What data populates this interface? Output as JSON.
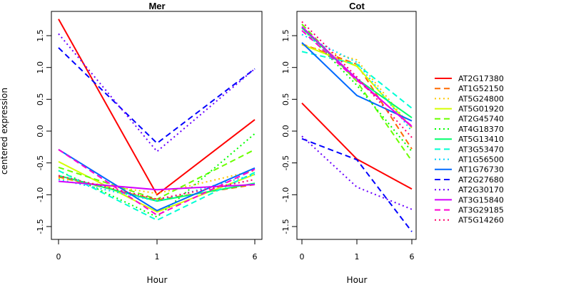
{
  "chart_data": {
    "type": "line",
    "ylabel": "centered expression",
    "legend_position": "right",
    "panels": [
      {
        "title": "Mer",
        "xlabel": "Hour",
        "x_ticks": [
          "0",
          "1",
          "6"
        ],
        "y_ticks": [
          "-1.5",
          "-1.0",
          "-0.5",
          "0.0",
          "0.5",
          "1.0",
          "1.5"
        ],
        "ylim": [
          -1.7,
          1.85
        ],
        "series": [
          {
            "name": "AT2G17380",
            "values": [
              1.76,
              -1.0,
              0.18
            ]
          },
          {
            "name": "AT1G52150",
            "values": [
              -0.72,
              -1.08,
              -0.84
            ]
          },
          {
            "name": "AT5G24800",
            "values": [
              -0.74,
              -0.98,
              -0.62
            ]
          },
          {
            "name": "AT5G01920",
            "values": [
              -0.48,
              -1.27,
              -0.68
            ]
          },
          {
            "name": "AT2G45740",
            "values": [
              -0.57,
              -1.07,
              -0.29
            ]
          },
          {
            "name": "AT4G18370",
            "values": [
              -0.62,
              -1.35,
              -0.04
            ]
          },
          {
            "name": "AT5G13410",
            "values": [
              -0.7,
              -1.1,
              -0.82
            ]
          },
          {
            "name": "AT3G53470",
            "values": [
              -0.62,
              -1.4,
              -0.65
            ]
          },
          {
            "name": "AT1G56500",
            "values": [
              -0.76,
              -1.1,
              -0.68
            ]
          },
          {
            "name": "AT1G76730",
            "values": [
              -0.29,
              -1.25,
              -0.58
            ]
          },
          {
            "name": "AT2G27680",
            "values": [
              1.31,
              -0.19,
              0.98
            ]
          },
          {
            "name": "AT2G30170",
            "values": [
              1.53,
              -0.32,
              0.98
            ]
          },
          {
            "name": "AT3G15840",
            "values": [
              -0.79,
              -0.92,
              -0.84
            ]
          },
          {
            "name": "AT3G29185",
            "values": [
              -0.29,
              -1.32,
              -0.6
            ]
          },
          {
            "name": "AT5G14260",
            "values": [
              -0.7,
              -1.07,
              -0.76
            ]
          }
        ]
      },
      {
        "title": "Cot",
        "xlabel": "Hour",
        "x_ticks": [
          "0",
          "1",
          "6"
        ],
        "y_ticks": [
          "-1.5",
          "-1.0",
          "-0.5",
          "0.0",
          "0.5",
          "1.0",
          "1.5"
        ],
        "ylim": [
          -1.7,
          1.85
        ],
        "series": [
          {
            "name": "AT2G17380",
            "values": [
              0.44,
              -0.44,
              -0.91
            ]
          },
          {
            "name": "AT1G52150",
            "values": [
              1.37,
              1.05,
              -0.28
            ]
          },
          {
            "name": "AT5G24800",
            "values": [
              1.36,
              1.12,
              0.05
            ]
          },
          {
            "name": "AT5G01920",
            "values": [
              1.36,
              1.02,
              0.05
            ]
          },
          {
            "name": "AT2G45740",
            "values": [
              1.68,
              0.78,
              -0.47
            ]
          },
          {
            "name": "AT4G18370",
            "values": [
              1.62,
              0.72,
              -0.32
            ]
          },
          {
            "name": "AT5G13410",
            "values": [
              1.62,
              0.82,
              0.21
            ]
          },
          {
            "name": "AT3G53470",
            "values": [
              1.25,
              1.05,
              0.36
            ]
          },
          {
            "name": "AT1G56500",
            "values": [
              1.52,
              1.08,
              0.0
            ]
          },
          {
            "name": "AT1G76730",
            "values": [
              1.39,
              0.56,
              0.16
            ]
          },
          {
            "name": "AT2G27680",
            "values": [
              -0.12,
              -0.45,
              -1.58
            ]
          },
          {
            "name": "AT2G30170",
            "values": [
              -0.08,
              -0.88,
              -1.23
            ]
          },
          {
            "name": "AT3G15840",
            "values": [
              1.64,
              0.82,
              0.07
            ]
          },
          {
            "name": "AT3G29185",
            "values": [
              1.58,
              0.8,
              0.08
            ]
          },
          {
            "name": "AT5G14260",
            "values": [
              1.72,
              0.85,
              -0.1
            ]
          }
        ]
      }
    ],
    "legend": [
      {
        "name": "AT2G17380",
        "color": "#ff0000",
        "dash": "solid"
      },
      {
        "name": "AT1G52150",
        "color": "#ff6a00",
        "dash": "dashed"
      },
      {
        "name": "AT5G24800",
        "color": "#ffc800",
        "dash": "dotted"
      },
      {
        "name": "AT5G01920",
        "color": "#d4ff00",
        "dash": "solid"
      },
      {
        "name": "AT2G45740",
        "color": "#6aff00",
        "dash": "dashed"
      },
      {
        "name": "AT4G18370",
        "color": "#00ff00",
        "dash": "dotted"
      },
      {
        "name": "AT5G13410",
        "color": "#00ff6a",
        "dash": "solid"
      },
      {
        "name": "AT3G53470",
        "color": "#00ffd4",
        "dash": "dashed"
      },
      {
        "name": "AT1G56500",
        "color": "#00d4ff",
        "dash": "dotted"
      },
      {
        "name": "AT1G76730",
        "color": "#006aff",
        "dash": "solid"
      },
      {
        "name": "AT2G27680",
        "color": "#0000ff",
        "dash": "dashed"
      },
      {
        "name": "AT2G30170",
        "color": "#6a00ff",
        "dash": "dotted"
      },
      {
        "name": "AT3G15840",
        "color": "#d400ff",
        "dash": "solid"
      },
      {
        "name": "AT3G29185",
        "color": "#ff00d4",
        "dash": "dashed"
      },
      {
        "name": "AT5G14260",
        "color": "#ff006a",
        "dash": "dotted"
      }
    ]
  }
}
